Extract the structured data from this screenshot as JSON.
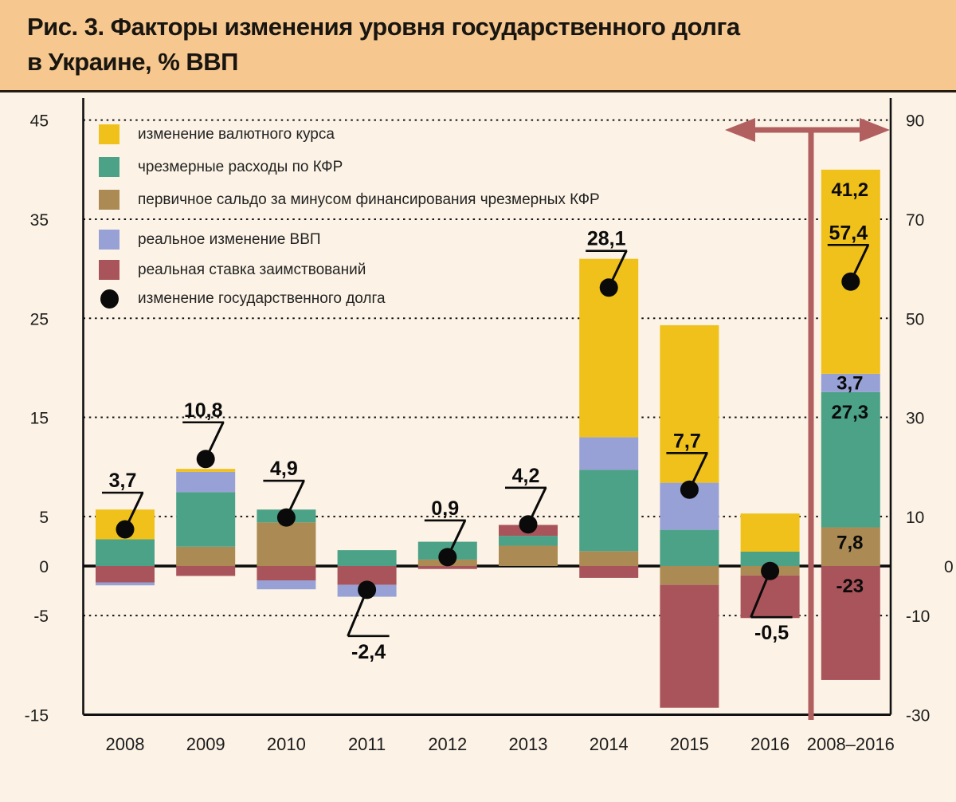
{
  "title": {
    "line1": "Рис. 3. Факторы изменения уровня государственного долга",
    "line2": "в Украине, % ВВП"
  },
  "colors": {
    "yellow": "#f0c11a",
    "green": "#4ba287",
    "brown": "#ab8a54",
    "blue": "#98a1d6",
    "red": "#a9545b",
    "dot": "#0a0a0a",
    "arrow": "#b25f60",
    "background": "#fcf3e6",
    "title_band": "#f6c88f",
    "grid": "#141414"
  },
  "legend": {
    "items": [
      {
        "swatch": "yellow",
        "shape": "square",
        "label": "изменение валютного курса"
      },
      {
        "swatch": "green",
        "shape": "square",
        "label": "чрезмерные расходы по КФР"
      },
      {
        "swatch": "brown",
        "shape": "square",
        "label": "первичное сальдо за минусом финансирования чрезмерных КФР"
      },
      {
        "swatch": "blue",
        "shape": "square",
        "label": "реальное изменение ВВП"
      },
      {
        "swatch": "red",
        "shape": "square",
        "label": "реальная ставка заимствований"
      },
      {
        "swatch": "dot",
        "shape": "circle",
        "label": "изменение государственного долга"
      }
    ]
  },
  "chart_data": {
    "type": "bar",
    "subtype": "stacked-bar with point markers",
    "title": "Факторы изменения уровня государственного долга в Украине, % ВВП",
    "grid": "dotted horizontal",
    "legend_position": "top-left inside plot",
    "axes": {
      "left": {
        "ticks": [
          45,
          35,
          25,
          15,
          5,
          0,
          -5,
          -15
        ],
        "range": [
          -15,
          45
        ]
      },
      "right": {
        "ticks": [
          90,
          70,
          50,
          30,
          10,
          0,
          -10,
          -30
        ],
        "range": [
          -30,
          90
        ]
      },
      "gridlines_left_scale": [
        45,
        35,
        25,
        15,
        5,
        -5
      ],
      "note": "bar 2008–2016 is measured on the right axis (marked by dark-red double arrow)"
    },
    "categories": [
      "2008",
      "2009",
      "2010",
      "2011",
      "2012",
      "2013",
      "2014",
      "2015",
      "2016",
      "2008–2016"
    ],
    "bars": [
      {
        "category": "2008",
        "axis": "left",
        "pos": [
          [
            "green",
            2.7
          ],
          [
            "yellow",
            3.0
          ]
        ],
        "neg": [
          [
            "red",
            -1.65
          ],
          [
            "blue",
            -0.3
          ]
        ],
        "total": 3.7,
        "total_label": "3,7",
        "label_side": "above"
      },
      {
        "category": "2009",
        "axis": "left",
        "pos": [
          [
            "brown",
            1.95
          ],
          [
            "green",
            5.5
          ],
          [
            "blue",
            2.05
          ],
          [
            "yellow",
            0.3
          ]
        ],
        "neg": [
          [
            "red",
            -1.0
          ]
        ],
        "total": 10.8,
        "total_label": "10,8",
        "label_side": "above"
      },
      {
        "category": "2010",
        "axis": "left",
        "pos": [
          [
            "brown",
            4.4
          ],
          [
            "green",
            1.3
          ]
        ],
        "neg": [
          [
            "red",
            -1.45
          ],
          [
            "blue",
            -0.9
          ]
        ],
        "total": 4.9,
        "total_label": "4,9",
        "label_side": "above"
      },
      {
        "category": "2011",
        "axis": "left",
        "pos": [
          [
            "green",
            1.6
          ]
        ],
        "neg": [
          [
            "red",
            -1.9
          ],
          [
            "blue",
            -1.2
          ]
        ],
        "total": -2.4,
        "total_label": "-2,4",
        "label_side": "below"
      },
      {
        "category": "2012",
        "axis": "left",
        "pos": [
          [
            "brown",
            0.65
          ],
          [
            "green",
            1.8
          ]
        ],
        "neg": [
          [
            "red",
            -0.3
          ]
        ],
        "total": 0.9,
        "total_label": "0,9",
        "label_side": "above"
      },
      {
        "category": "2013",
        "axis": "left",
        "pos": [
          [
            "brown",
            2.05
          ],
          [
            "green",
            1.0
          ],
          [
            "red",
            1.1
          ]
        ],
        "neg": [],
        "total": 4.2,
        "total_label": "4,2",
        "label_side": "above"
      },
      {
        "category": "2014",
        "axis": "left",
        "pos": [
          [
            "brown",
            1.5
          ],
          [
            "green",
            8.2
          ],
          [
            "blue",
            3.3
          ],
          [
            "yellow",
            18.0
          ]
        ],
        "neg": [
          [
            "red",
            -1.2
          ]
        ],
        "total": 28.1,
        "total_label": "28,1",
        "label_side": "above"
      },
      {
        "category": "2015",
        "axis": "left",
        "pos": [
          [
            "green",
            3.65
          ],
          [
            "blue",
            4.75
          ],
          [
            "yellow",
            15.9
          ]
        ],
        "neg": [
          [
            "brown",
            -1.9
          ],
          [
            "red",
            -12.4
          ]
        ],
        "total": 7.7,
        "total_label": "7,7",
        "label_side": "above"
      },
      {
        "category": "2016",
        "axis": "left",
        "pos": [
          [
            "green",
            1.45
          ],
          [
            "yellow",
            3.85
          ]
        ],
        "neg": [
          [
            "brown",
            -0.95
          ],
          [
            "red",
            -4.3
          ]
        ],
        "total": -0.5,
        "total_label": "-0,5",
        "label_side": "below"
      },
      {
        "category": "2008–2016",
        "axis": "right",
        "pos": [
          [
            "brown",
            7.8
          ],
          [
            "green",
            27.3
          ],
          [
            "blue",
            3.7
          ],
          [
            "yellow",
            41.2
          ]
        ],
        "neg": [
          [
            "red",
            -23
          ]
        ],
        "total": 57.4,
        "total_label": "57,4",
        "label_side": "above",
        "segment_labels": [
          [
            "yellow",
            "41,2"
          ],
          [
            "blue",
            "3,7"
          ],
          [
            "green",
            "27,3"
          ],
          [
            "brown",
            "7,8"
          ],
          [
            "red",
            "-23"
          ]
        ]
      }
    ]
  }
}
